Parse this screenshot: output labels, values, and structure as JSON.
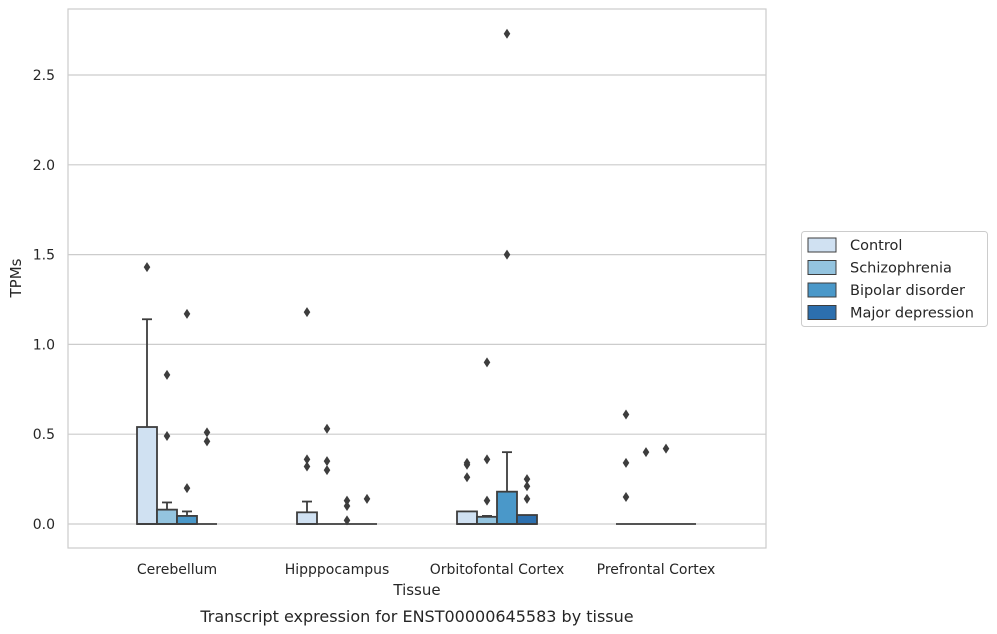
{
  "chart_data": {
    "type": "box",
    "title": "",
    "caption": "Transcript expression for ENST00000645583 by tissue",
    "xlabel": "Tissue",
    "ylabel": "TPMs",
    "ylim": [
      -0.13,
      2.87
    ],
    "yticks": [
      "0.0",
      "0.5",
      "1.0",
      "1.5",
      "2.0",
      "2.5"
    ],
    "yticks_values": [
      0,
      0.5,
      1.0,
      1.5,
      2.0,
      2.5
    ],
    "grid": true,
    "legend_position": "right",
    "categories": [
      "Cerebellum",
      "Hipppocampus",
      "Orbitofontal Cortex",
      "Prefrontal Cortex"
    ],
    "series": [
      {
        "name": "Control",
        "color": "#d0e1f2",
        "boxes": [
          {
            "q1": 0,
            "median": 0,
            "q3": 0.54,
            "whisker_low": 0,
            "whisker_high": 1.14,
            "outliers": [
              1.43
            ]
          },
          {
            "q1": 0,
            "median": 0,
            "q3": 0.065,
            "whisker_low": 0,
            "whisker_high": 0.125,
            "outliers": [
              1.18,
              0.36,
              0.32
            ]
          },
          {
            "q1": 0,
            "median": 0,
            "q3": 0.07,
            "whisker_low": 0,
            "whisker_high": 0.07,
            "outliers": [
              0.34,
              0.33,
              0.26
            ]
          },
          {
            "q1": 0,
            "median": 0,
            "q3": 0,
            "whisker_low": 0,
            "whisker_high": 0,
            "outliers": [
              0.61,
              0.34,
              0.15
            ]
          }
        ]
      },
      {
        "name": "Schizophrenia",
        "color": "#94c4df",
        "boxes": [
          {
            "q1": 0,
            "median": 0,
            "q3": 0.08,
            "whisker_low": 0,
            "whisker_high": 0.12,
            "outliers": [
              0.83,
              0.49
            ]
          },
          {
            "q1": 0,
            "median": 0,
            "q3": 0,
            "whisker_low": 0,
            "whisker_high": 0,
            "outliers": [
              0.53,
              0.35,
              0.3
            ]
          },
          {
            "q1": 0,
            "median": 0,
            "q3": 0.04,
            "whisker_low": 0,
            "whisker_high": 0.045,
            "outliers": [
              0.9,
              0.36,
              0.13
            ]
          },
          {
            "q1": 0,
            "median": 0,
            "q3": 0,
            "whisker_low": 0,
            "whisker_high": 0,
            "outliers": [
              0.4
            ]
          }
        ]
      },
      {
        "name": "Bipolar disorder",
        "color": "#4a98c9",
        "boxes": [
          {
            "q1": 0,
            "median": 0,
            "q3": 0.045,
            "whisker_low": 0,
            "whisker_high": 0.07,
            "outliers": [
              1.17,
              0.2
            ]
          },
          {
            "q1": 0,
            "median": 0,
            "q3": 0,
            "whisker_low": 0,
            "whisker_high": 0,
            "outliers": [
              0.13,
              0.1,
              0.02
            ]
          },
          {
            "q1": 0,
            "median": 0,
            "q3": 0.18,
            "whisker_low": 0,
            "whisker_high": 0.4,
            "outliers": [
              2.73,
              1.5
            ]
          },
          {
            "q1": 0,
            "median": 0,
            "q3": 0,
            "whisker_low": 0,
            "whisker_high": 0,
            "outliers": [
              0.42
            ]
          }
        ]
      },
      {
        "name": "Major depression",
        "color": "#2c6fae",
        "boxes": [
          {
            "q1": 0,
            "median": 0,
            "q3": 0,
            "whisker_low": 0,
            "whisker_high": 0,
            "outliers": [
              0.51,
              0.46
            ]
          },
          {
            "q1": 0,
            "median": 0,
            "q3": 0,
            "whisker_low": 0,
            "whisker_high": 0,
            "outliers": [
              0.14
            ]
          },
          {
            "q1": 0,
            "median": 0,
            "q3": 0.05,
            "whisker_low": 0,
            "whisker_high": 0.05,
            "outliers": [
              0.25,
              0.21,
              0.14
            ]
          },
          {
            "q1": 0,
            "median": 0,
            "q3": 0,
            "whisker_low": 0,
            "whisker_high": 0,
            "outliers": []
          }
        ]
      }
    ]
  }
}
